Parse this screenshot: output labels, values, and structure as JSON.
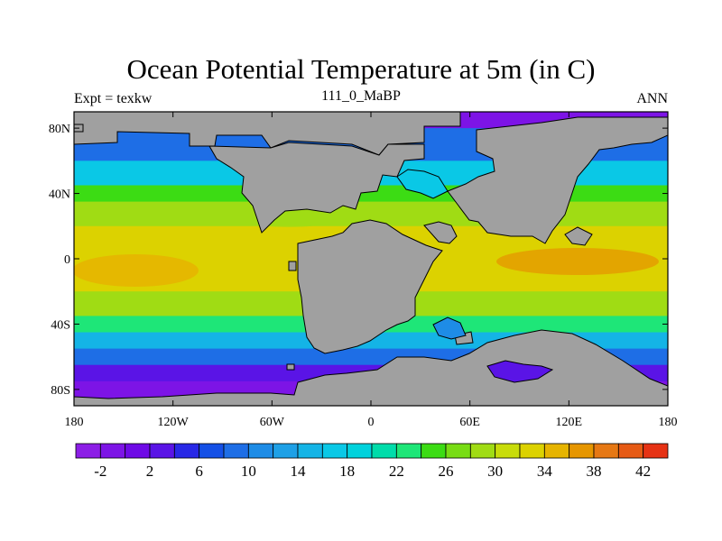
{
  "chart_data": {
    "type": "heatmap",
    "title": "Ocean Potential Temperature at 5m (in C)",
    "left_label": "Expt = texkw",
    "center_label": "111_0_MaBP",
    "right_label": "ANN",
    "x_ticks": [
      "180",
      "120W",
      "60W",
      "0",
      "60E",
      "120E",
      "180"
    ],
    "y_ticks": [
      "80N",
      "40N",
      "0",
      "40S",
      "80S"
    ],
    "xlim": [
      -180,
      180
    ],
    "ylim": [
      -90,
      90
    ],
    "x_tick_values": [
      -180,
      -120,
      -60,
      0,
      60,
      120,
      180
    ],
    "y_tick_values": [
      80,
      40,
      0,
      -40,
      -80
    ],
    "land_color": "#a0a0a0",
    "colorbar": {
      "levels": [
        -4,
        -2,
        0,
        2,
        4,
        6,
        8,
        10,
        12,
        14,
        16,
        18,
        20,
        22,
        24,
        26,
        28,
        30,
        32,
        34,
        36,
        38,
        40,
        42,
        44
      ],
      "labels": [
        "-2",
        "2",
        "6",
        "10",
        "14",
        "18",
        "22",
        "26",
        "30",
        "34",
        "38",
        "42"
      ],
      "colors": [
        "#8c1ee6",
        "#7d14e6",
        "#6e0ae6",
        "#5a14e6",
        "#2828e6",
        "#1450e6",
        "#1e6ee6",
        "#1e8ce6",
        "#1ea0e6",
        "#14b4e6",
        "#0ac8e6",
        "#00d2dc",
        "#00dcaa",
        "#1ee678",
        "#3cdc14",
        "#78dc14",
        "#a0dc14",
        "#c8dc0a",
        "#dcd200",
        "#e6b400",
        "#e69600",
        "#e67814",
        "#e65a14",
        "#e63214"
      ]
    },
    "bands": [
      {
        "lat_range": [
          90,
          80
        ],
        "value": -1
      },
      {
        "lat_range": [
          80,
          60
        ],
        "value": 8
      },
      {
        "lat_range": [
          60,
          45
        ],
        "value": 16
      },
      {
        "lat_range": [
          45,
          35
        ],
        "value": 24
      },
      {
        "lat_range": [
          35,
          20
        ],
        "value": 28
      },
      {
        "lat_range": [
          20,
          -20
        ],
        "value": 32
      },
      {
        "lat_range": [
          -20,
          -35
        ],
        "value": 28
      },
      {
        "lat_range": [
          -35,
          -45
        ],
        "value": 22
      },
      {
        "lat_range": [
          -45,
          -55
        ],
        "value": 15
      },
      {
        "lat_range": [
          -55,
          -65
        ],
        "value": 8
      },
      {
        "lat_range": [
          -65,
          -75
        ],
        "value": 3
      },
      {
        "lat_range": [
          -75,
          -90
        ],
        "value": -1
      }
    ]
  }
}
